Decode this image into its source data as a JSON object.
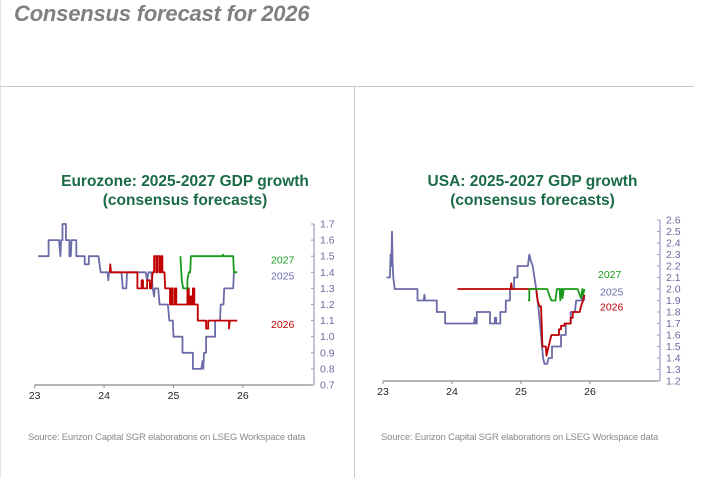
{
  "page": {
    "title": "Consensus forecast for 2026"
  },
  "colors": {
    "y2025": "#6b6ba8",
    "y2026": "#c00000",
    "y2027": "#1a9a1a",
    "title": "#1a6b45",
    "axis": "#9a9ac4",
    "xaxis": "#888888"
  },
  "chart_data": [
    {
      "type": "line",
      "title": "Eurozone: 2025-2027 GDP growth",
      "subtitle": "(consensus forecasts)",
      "xlabel": "",
      "ylabel": "",
      "xlim": [
        23,
        26.9
      ],
      "ylim": [
        0.7,
        1.7
      ],
      "x_ticks": [
        "23",
        "24",
        "25",
        "26"
      ],
      "y_ticks": [
        "1.7",
        "1.6",
        "1.5",
        "1.4",
        "1.3",
        "1.2",
        "1.1",
        "1.0",
        "0.9",
        "0.8",
        "0.7"
      ],
      "y_axis_side": "right",
      "grid": false,
      "legend": "inline-right",
      "source": "Source: Eurizon Capital SGR elaborations on LSEG Workspace data",
      "series": [
        {
          "name": "2025",
          "color_key": "y2025",
          "points": [
            [
              23.05,
              1.5
            ],
            [
              23.2,
              1.5
            ],
            [
              23.2,
              1.6
            ],
            [
              23.35,
              1.6
            ],
            [
              23.37,
              1.5
            ],
            [
              23.38,
              1.6
            ],
            [
              23.4,
              1.6
            ],
            [
              23.4,
              1.7
            ],
            [
              23.45,
              1.7
            ],
            [
              23.45,
              1.6
            ],
            [
              23.5,
              1.6
            ],
            [
              23.5,
              1.5
            ],
            [
              23.52,
              1.5
            ],
            [
              23.53,
              1.6
            ],
            [
              23.6,
              1.6
            ],
            [
              23.6,
              1.5
            ],
            [
              23.72,
              1.5
            ],
            [
              23.72,
              1.45
            ],
            [
              23.78,
              1.45
            ],
            [
              23.78,
              1.5
            ],
            [
              23.92,
              1.5
            ],
            [
              23.95,
              1.4
            ],
            [
              24.05,
              1.4
            ],
            [
              24.06,
              1.35
            ],
            [
              24.07,
              1.4
            ],
            [
              24.25,
              1.4
            ],
            [
              24.27,
              1.3
            ],
            [
              24.32,
              1.3
            ],
            [
              24.33,
              1.4
            ],
            [
              24.6,
              1.4
            ],
            [
              24.62,
              1.35
            ],
            [
              24.64,
              1.4
            ],
            [
              24.68,
              1.4
            ],
            [
              24.7,
              1.3
            ],
            [
              24.72,
              1.25
            ],
            [
              24.73,
              1.3
            ],
            [
              24.78,
              1.3
            ],
            [
              24.8,
              1.2
            ],
            [
              24.92,
              1.2
            ],
            [
              24.94,
              1.1
            ],
            [
              24.99,
              1.1
            ],
            [
              25.0,
              1.0
            ],
            [
              25.13,
              1.0
            ],
            [
              25.13,
              0.9
            ],
            [
              25.28,
              0.9
            ],
            [
              25.28,
              0.8
            ],
            [
              25.4,
              0.8
            ],
            [
              25.42,
              0.85
            ],
            [
              25.43,
              0.8
            ],
            [
              25.44,
              0.9
            ],
            [
              25.47,
              0.9
            ],
            [
              25.47,
              1.0
            ],
            [
              25.6,
              1.0
            ],
            [
              25.6,
              1.1
            ],
            [
              25.67,
              1.1
            ],
            [
              25.68,
              1.2
            ],
            [
              25.72,
              1.2
            ],
            [
              25.73,
              1.3
            ],
            [
              25.86,
              1.3
            ],
            [
              25.87,
              1.4
            ],
            [
              25.9,
              1.4
            ]
          ]
        },
        {
          "name": "2026",
          "color_key": "y2026",
          "points": [
            [
              24.08,
              1.4
            ],
            [
              24.09,
              1.45
            ],
            [
              24.1,
              1.4
            ],
            [
              24.48,
              1.4
            ],
            [
              24.48,
              1.3
            ],
            [
              24.54,
              1.3
            ],
            [
              24.54,
              1.35
            ],
            [
              24.56,
              1.35
            ],
            [
              24.56,
              1.3
            ],
            [
              24.62,
              1.3
            ],
            [
              24.62,
              1.35
            ],
            [
              24.66,
              1.35
            ],
            [
              24.66,
              1.3
            ],
            [
              24.68,
              1.3
            ],
            [
              24.7,
              1.4
            ],
            [
              24.72,
              1.4
            ],
            [
              24.72,
              1.5
            ],
            [
              24.75,
              1.5
            ],
            [
              24.75,
              1.4
            ],
            [
              24.77,
              1.4
            ],
            [
              24.77,
              1.5
            ],
            [
              24.8,
              1.5
            ],
            [
              24.8,
              1.4
            ],
            [
              24.82,
              1.4
            ],
            [
              24.82,
              1.5
            ],
            [
              24.84,
              1.5
            ],
            [
              24.84,
              1.4
            ],
            [
              24.87,
              1.4
            ],
            [
              24.88,
              1.3
            ],
            [
              24.95,
              1.3
            ],
            [
              24.95,
              1.2
            ],
            [
              24.97,
              1.2
            ],
            [
              24.97,
              1.3
            ],
            [
              24.99,
              1.3
            ],
            [
              24.99,
              1.2
            ],
            [
              25.02,
              1.2
            ],
            [
              25.02,
              1.3
            ],
            [
              25.04,
              1.3
            ],
            [
              25.04,
              1.2
            ],
            [
              25.2,
              1.2
            ],
            [
              25.2,
              1.3
            ],
            [
              25.22,
              1.3
            ],
            [
              25.22,
              1.2
            ],
            [
              25.24,
              1.2
            ],
            [
              25.24,
              1.25
            ],
            [
              25.26,
              1.25
            ],
            [
              25.26,
              1.2
            ],
            [
              25.28,
              1.2
            ],
            [
              25.28,
              1.3
            ],
            [
              25.3,
              1.3
            ],
            [
              25.3,
              1.2
            ],
            [
              25.35,
              1.2
            ],
            [
              25.35,
              1.1
            ],
            [
              25.47,
              1.1
            ],
            [
              25.47,
              1.05
            ],
            [
              25.5,
              1.05
            ],
            [
              25.5,
              1.1
            ],
            [
              25.8,
              1.1
            ],
            [
              25.8,
              1.05
            ],
            [
              25.81,
              1.1
            ],
            [
              25.92,
              1.1
            ]
          ]
        },
        {
          "name": "2027",
          "color_key": "y2027",
          "points": [
            [
              25.1,
              1.5
            ],
            [
              25.12,
              1.35
            ],
            [
              25.14,
              1.3
            ],
            [
              25.2,
              1.3
            ],
            [
              25.2,
              1.35
            ],
            [
              25.22,
              1.4
            ],
            [
              25.24,
              1.4
            ],
            [
              25.25,
              1.5
            ],
            [
              25.7,
              1.5
            ],
            [
              25.71,
              1.51
            ],
            [
              25.72,
              1.5
            ],
            [
              25.86,
              1.5
            ],
            [
              25.87,
              1.4
            ],
            [
              25.92,
              1.4
            ]
          ]
        }
      ]
    },
    {
      "type": "line",
      "title": "USA: 2025-2027 GDP growth",
      "subtitle": "(consensus forecasts)",
      "xlabel": "",
      "ylabel": "",
      "xlim": [
        23,
        26.9
      ],
      "ylim": [
        1.2,
        2.6
      ],
      "x_ticks": [
        "23",
        "24",
        "25",
        "26"
      ],
      "y_ticks": [
        "2.6",
        "2.5",
        "2.4",
        "2.3",
        "2.2",
        "2.1",
        "2.0",
        "1.9",
        "1.8",
        "1.7",
        "1.6",
        "1.5",
        "1.4",
        "1.3",
        "1.2"
      ],
      "y_axis_side": "right",
      "grid": false,
      "legend": "inline-right",
      "source": "Source: Eurizon Capital SGR elaborations on LSEG Workspace data",
      "series": [
        {
          "name": "2025",
          "color_key": "y2025",
          "points": [
            [
              23.05,
              2.1
            ],
            [
              23.1,
              2.1
            ],
            [
              23.11,
              2.3
            ],
            [
              23.12,
              2.2
            ],
            [
              23.13,
              2.5
            ],
            [
              23.14,
              2.2
            ],
            [
              23.15,
              2.1
            ],
            [
              23.16,
              2.05
            ],
            [
              23.17,
              2.0
            ],
            [
              23.5,
              2.0
            ],
            [
              23.5,
              1.9
            ],
            [
              23.59,
              1.9
            ],
            [
              23.6,
              1.95
            ],
            [
              23.61,
              1.9
            ],
            [
              23.78,
              1.9
            ],
            [
              23.78,
              1.8
            ],
            [
              23.9,
              1.8
            ],
            [
              23.9,
              1.7
            ],
            [
              24.32,
              1.7
            ],
            [
              24.33,
              1.75
            ],
            [
              24.34,
              1.7
            ],
            [
              24.36,
              1.7
            ],
            [
              24.36,
              1.8
            ],
            [
              24.55,
              1.8
            ],
            [
              24.55,
              1.7
            ],
            [
              24.62,
              1.7
            ],
            [
              24.62,
              1.75
            ],
            [
              24.64,
              1.75
            ],
            [
              24.64,
              1.7
            ],
            [
              24.7,
              1.7
            ],
            [
              24.7,
              1.8
            ],
            [
              24.78,
              1.8
            ],
            [
              24.78,
              1.9
            ],
            [
              24.84,
              1.9
            ],
            [
              24.84,
              2.0
            ],
            [
              24.9,
              2.0
            ],
            [
              24.9,
              2.1
            ],
            [
              24.95,
              2.1
            ],
            [
              24.95,
              2.2
            ],
            [
              25.1,
              2.2
            ],
            [
              25.12,
              2.3
            ],
            [
              25.14,
              2.25
            ],
            [
              25.17,
              2.2
            ],
            [
              25.22,
              2.0
            ],
            [
              25.26,
              1.8
            ],
            [
              25.29,
              1.6
            ],
            [
              25.32,
              1.4
            ],
            [
              25.34,
              1.35
            ],
            [
              25.38,
              1.35
            ],
            [
              25.4,
              1.4
            ],
            [
              25.45,
              1.4
            ],
            [
              25.45,
              1.5
            ],
            [
              25.58,
              1.5
            ],
            [
              25.58,
              1.6
            ],
            [
              25.65,
              1.6
            ],
            [
              25.65,
              1.7
            ],
            [
              25.72,
              1.7
            ],
            [
              25.72,
              1.8
            ],
            [
              25.78,
              1.8
            ],
            [
              25.8,
              1.9
            ],
            [
              25.88,
              1.9
            ],
            [
              25.9,
              1.95
            ],
            [
              25.92,
              1.9
            ]
          ]
        },
        {
          "name": "2026",
          "color_key": "y2026",
          "points": [
            [
              24.08,
              2.0
            ],
            [
              24.85,
              2.0
            ],
            [
              24.86,
              2.05
            ],
            [
              24.87,
              2.0
            ],
            [
              25.22,
              2.0
            ],
            [
              25.24,
              1.9
            ],
            [
              25.27,
              1.85
            ],
            [
              25.29,
              1.85
            ],
            [
              25.3,
              1.7
            ],
            [
              25.31,
              1.5
            ],
            [
              25.36,
              1.5
            ],
            [
              25.37,
              1.42
            ],
            [
              25.38,
              1.45
            ],
            [
              25.4,
              1.5
            ],
            [
              25.42,
              1.55
            ],
            [
              25.44,
              1.6
            ],
            [
              25.55,
              1.6
            ],
            [
              25.55,
              1.65
            ],
            [
              25.58,
              1.65
            ],
            [
              25.58,
              1.68
            ],
            [
              25.63,
              1.68
            ],
            [
              25.63,
              1.7
            ],
            [
              25.72,
              1.7
            ],
            [
              25.72,
              1.75
            ],
            [
              25.75,
              1.75
            ],
            [
              25.75,
              1.8
            ],
            [
              25.85,
              1.8
            ],
            [
              25.87,
              1.85
            ],
            [
              25.9,
              1.9
            ],
            [
              25.92,
              1.95
            ]
          ]
        },
        {
          "name": "2027",
          "color_key": "y2027",
          "points": [
            [
              25.1,
              1.9
            ],
            [
              25.12,
              1.9
            ],
            [
              25.12,
              2.0
            ],
            [
              25.38,
              2.0
            ],
            [
              25.42,
              1.93
            ],
            [
              25.44,
              1.9
            ],
            [
              25.5,
              1.9
            ],
            [
              25.52,
              2.0
            ],
            [
              25.56,
              2.0
            ],
            [
              25.57,
              1.9
            ],
            [
              25.58,
              2.0
            ],
            [
              25.6,
              2.0
            ],
            [
              25.6,
              1.92
            ],
            [
              25.62,
              2.0
            ],
            [
              25.82,
              2.0
            ],
            [
              25.85,
              1.95
            ],
            [
              25.87,
              1.92
            ],
            [
              25.89,
              2.0
            ],
            [
              25.9,
              1.95
            ],
            [
              25.92,
              2.0
            ]
          ]
        }
      ]
    }
  ]
}
